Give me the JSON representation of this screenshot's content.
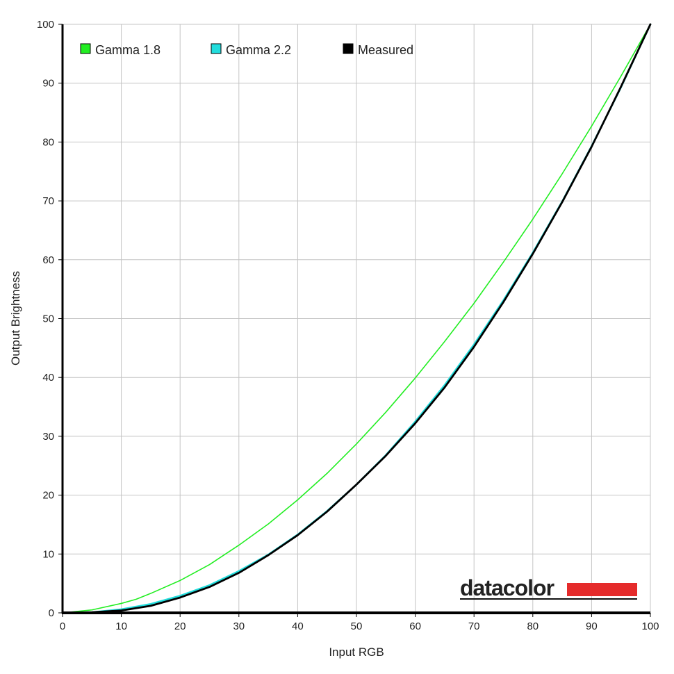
{
  "chart_data": {
    "type": "line",
    "xlabel": "Input RGB",
    "ylabel": "Output Brightness",
    "xlim": [
      0,
      100
    ],
    "ylim": [
      0,
      100
    ],
    "x_ticks": [
      0,
      10,
      20,
      30,
      40,
      50,
      60,
      70,
      80,
      90,
      100
    ],
    "y_ticks": [
      0,
      10,
      20,
      30,
      40,
      50,
      60,
      70,
      80,
      90,
      100
    ],
    "grid": true,
    "legend_position": "top-left",
    "series": [
      {
        "name": "Gamma 1.8",
        "color": "#22ee22",
        "x": [
          0,
          5,
          10,
          12.5,
          15,
          20,
          25,
          30,
          35,
          40,
          45,
          50,
          55,
          60,
          65,
          70,
          75,
          80,
          85,
          90,
          95,
          100
        ],
        "values": [
          0,
          0.5,
          1.6,
          2.3,
          3.3,
          5.5,
          8.2,
          11.5,
          15.1,
          19.2,
          23.7,
          28.7,
          34.1,
          39.9,
          46.1,
          52.6,
          59.6,
          66.9,
          74.6,
          82.7,
          91.2,
          100
        ]
      },
      {
        "name": "Gamma 2.2",
        "color": "#22dddd",
        "x": [
          0,
          5,
          10,
          15,
          20,
          25,
          30,
          35,
          40,
          45,
          50,
          55,
          60,
          65,
          70,
          75,
          80,
          85,
          90,
          95,
          100
        ],
        "values": [
          0,
          0.1,
          0.6,
          1.5,
          2.9,
          4.7,
          7.1,
          9.9,
          13.3,
          17.3,
          21.8,
          26.8,
          32.5,
          38.7,
          45.6,
          53.1,
          61.2,
          69.9,
          79.3,
          89.3,
          100
        ]
      },
      {
        "name": "Measured",
        "color": "#000000",
        "x": [
          0,
          5,
          10,
          15,
          20,
          25,
          30,
          35,
          40,
          45,
          50,
          55,
          60,
          65,
          70,
          75,
          80,
          85,
          90,
          95,
          100
        ],
        "values": [
          0,
          0.1,
          0.4,
          1.2,
          2.6,
          4.4,
          6.8,
          9.8,
          13.2,
          17.2,
          21.8,
          26.7,
          32.2,
          38.3,
          45.2,
          52.8,
          61.0,
          69.8,
          79.2,
          89.4,
          100
        ]
      }
    ]
  },
  "logo": {
    "text": "datacolor",
    "bar_color": "#e52b2b"
  }
}
